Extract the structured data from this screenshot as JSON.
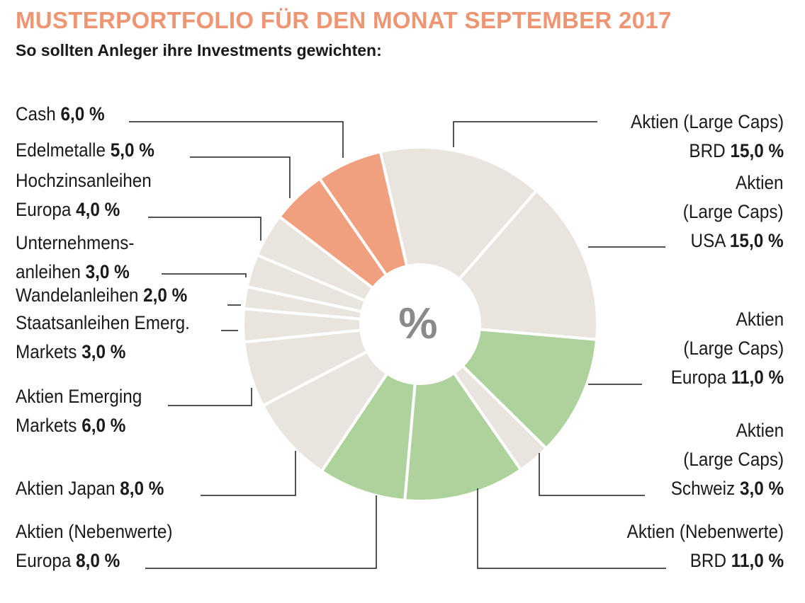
{
  "title": "MUSTERPORTFOLIO FÜR DEN MONAT SEPTEMBER 2017",
  "subtitle": "So sollten Anleger ihre Investments gewichten:",
  "center_symbol": "%",
  "colors": {
    "title": "#ee9673",
    "beige": "#e9e5de",
    "green": "#aed29b",
    "orange": "#f1a07f",
    "leader_line": "#1a1a1a"
  },
  "chart_data": {
    "type": "pie",
    "variant": "donut",
    "unit": "%",
    "slices": [
      {
        "name": "Aktien (Large Caps) BRD",
        "label_lines": [
          "Aktien (Large Caps)",
          "BRD"
        ],
        "value_label": "15,0 %",
        "value": 15.0,
        "color": "beige"
      },
      {
        "name": "Aktien (Large Caps) USA",
        "label_lines": [
          "Aktien",
          "(Large Caps)",
          "USA"
        ],
        "value_label": "15,0 %",
        "value": 15.0,
        "color": "beige"
      },
      {
        "name": "Aktien (Large Caps) Europa",
        "label_lines": [
          "Aktien",
          "(Large Caps)",
          "Europa"
        ],
        "value_label": "11,0 %",
        "value": 11.0,
        "color": "green"
      },
      {
        "name": "Aktien (Large Caps) Schweiz",
        "label_lines": [
          "Aktien",
          "(Large Caps)",
          "Schweiz"
        ],
        "value_label": "3,0 %",
        "value": 3.0,
        "color": "beige"
      },
      {
        "name": "Aktien (Nebenwerte) BRD",
        "label_lines": [
          "Aktien (Nebenwerte)",
          "BRD"
        ],
        "value_label": "11,0 %",
        "value": 11.0,
        "color": "green"
      },
      {
        "name": "Aktien (Nebenwerte) Europa",
        "label_lines": [
          "Aktien (Nebenwerte)",
          "Europa"
        ],
        "value_label": "8,0 %",
        "value": 8.0,
        "color": "green"
      },
      {
        "name": "Aktien Japan",
        "label_lines": [
          "Aktien Japan"
        ],
        "value_label": "8,0 %",
        "value": 8.0,
        "color": "beige"
      },
      {
        "name": "Aktien Emerging Markets",
        "label_lines": [
          "Aktien Emerging",
          "Markets"
        ],
        "value_label": "6,0 %",
        "value": 6.0,
        "color": "beige"
      },
      {
        "name": "Staatsanleihen Emerg. Markets",
        "label_lines": [
          "Staatsanleihen Emerg.",
          "Markets"
        ],
        "value_label": "3,0 %",
        "value": 3.0,
        "color": "beige"
      },
      {
        "name": "Wandelanleihen",
        "label_lines": [
          "Wandelanleihen"
        ],
        "value_label": "2,0 %",
        "value": 2.0,
        "color": "beige"
      },
      {
        "name": "Unternehmensanleihen",
        "label_lines": [
          "Unternehmens-",
          "anleihen"
        ],
        "value_label": "3,0 %",
        "value": 3.0,
        "color": "beige"
      },
      {
        "name": "Hochzinsanleihen Europa",
        "label_lines": [
          "Hochzinsanleihen",
          "Europa"
        ],
        "value_label": "4,0 %",
        "value": 4.0,
        "color": "beige"
      },
      {
        "name": "Edelmetalle",
        "label_lines": [
          "Edelmetalle"
        ],
        "value_label": "5,0 %",
        "value": 5.0,
        "color": "orange"
      },
      {
        "name": "Cash",
        "label_lines": [
          "Cash"
        ],
        "value_label": "6,0 %",
        "value": 6.0,
        "color": "orange"
      }
    ]
  }
}
